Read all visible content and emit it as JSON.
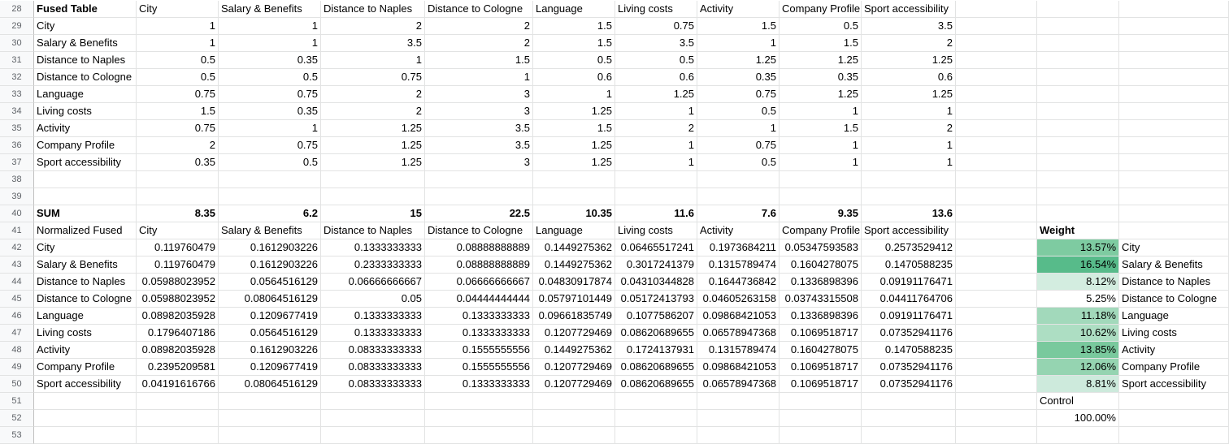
{
  "rows": [
    {
      "n": "28",
      "c": [
        "Fused Table",
        "City",
        "Salary & Benefits",
        "Distance to Naples",
        "Distance to Cologne",
        "Language",
        "Living costs",
        "Activity",
        "Company Profile",
        "Sport accessibility",
        "",
        "",
        ""
      ],
      "bold": [
        0
      ]
    },
    {
      "n": "29",
      "c": [
        "City",
        "1",
        "1",
        "2",
        "2",
        "1.5",
        "0.75",
        "1.5",
        "0.5",
        "3.5",
        "",
        "",
        ""
      ]
    },
    {
      "n": "30",
      "c": [
        "Salary & Benefits",
        "1",
        "1",
        "3.5",
        "2",
        "1.5",
        "3.5",
        "1",
        "1.5",
        "2",
        "",
        "",
        ""
      ]
    },
    {
      "n": "31",
      "c": [
        "Distance to Naples",
        "0.5",
        "0.35",
        "1",
        "1.5",
        "0.5",
        "0.5",
        "1.25",
        "1.25",
        "1.25",
        "",
        "",
        ""
      ]
    },
    {
      "n": "32",
      "c": [
        "Distance to Cologne",
        "0.5",
        "0.5",
        "0.75",
        "1",
        "0.6",
        "0.6",
        "0.35",
        "0.35",
        "0.6",
        "",
        "",
        ""
      ]
    },
    {
      "n": "33",
      "c": [
        "Language",
        "0.75",
        "0.75",
        "2",
        "3",
        "1",
        "1.25",
        "0.75",
        "1.25",
        "1.25",
        "",
        "",
        ""
      ]
    },
    {
      "n": "34",
      "c": [
        "Living costs",
        "1.5",
        "0.35",
        "2",
        "3",
        "1.25",
        "1",
        "0.5",
        "1",
        "1",
        "",
        "",
        ""
      ]
    },
    {
      "n": "35",
      "c": [
        "Activity",
        "0.75",
        "1",
        "1.25",
        "3.5",
        "1.5",
        "2",
        "1",
        "1.5",
        "2",
        "",
        "",
        ""
      ]
    },
    {
      "n": "36",
      "c": [
        "Company Profile",
        "2",
        "0.75",
        "1.25",
        "3.5",
        "1.25",
        "1",
        "0.75",
        "1",
        "1",
        "",
        "",
        ""
      ]
    },
    {
      "n": "37",
      "c": [
        "Sport accessibility",
        "0.35",
        "0.5",
        "1.25",
        "3",
        "1.25",
        "1",
        "0.5",
        "1",
        "1",
        "",
        "",
        ""
      ]
    },
    {
      "n": "38",
      "c": [
        "",
        "",
        "",
        "",
        "",
        "",
        "",
        "",
        "",
        "",
        "",
        "",
        ""
      ]
    },
    {
      "n": "39",
      "c": [
        "",
        "",
        "",
        "",
        "",
        "",
        "",
        "",
        "",
        "",
        "",
        "",
        ""
      ]
    },
    {
      "n": "40",
      "c": [
        "SUM",
        "8.35",
        "6.2",
        "15",
        "22.5",
        "10.35",
        "11.6",
        "7.6",
        "9.35",
        "13.6",
        "",
        "",
        ""
      ],
      "bold": [
        0,
        1,
        2,
        3,
        4,
        5,
        6,
        7,
        8,
        9
      ]
    },
    {
      "n": "41",
      "c": [
        "Normalized Fused",
        "City",
        "Salary & Benefits",
        "Distance to Naples",
        "Distance to Cologne",
        "Language",
        "Living costs",
        "Activity",
        "Company Profile",
        "Sport accessibility",
        "",
        "Weight",
        ""
      ],
      "bold": [
        11
      ]
    },
    {
      "n": "42",
      "c": [
        "City",
        "0.119760479",
        "0.1612903226",
        "0.1333333333",
        "0.08888888889",
        "0.1449275362",
        "0.06465517241",
        "0.1973684211",
        "0.05347593583",
        "0.2573529412",
        "",
        "13.57%",
        "City"
      ]
    },
    {
      "n": "43",
      "c": [
        "Salary & Benefits",
        "0.119760479",
        "0.1612903226",
        "0.2333333333",
        "0.08888888889",
        "0.1449275362",
        "0.3017241379",
        "0.1315789474",
        "0.1604278075",
        "0.1470588235",
        "",
        "16.54%",
        "Salary & Benefits"
      ]
    },
    {
      "n": "44",
      "c": [
        "Distance to Naples",
        "0.05988023952",
        "0.0564516129",
        "0.06666666667",
        "0.06666666667",
        "0.04830917874",
        "0.04310344828",
        "0.1644736842",
        "0.1336898396",
        "0.09191176471",
        "",
        "8.12%",
        "Distance to Naples"
      ]
    },
    {
      "n": "45",
      "c": [
        "Distance to Cologne",
        "0.05988023952",
        "0.08064516129",
        "0.05",
        "0.04444444444",
        "0.05797101449",
        "0.05172413793",
        "0.04605263158",
        "0.03743315508",
        "0.04411764706",
        "",
        "5.25%",
        "Distance to Cologne"
      ]
    },
    {
      "n": "46",
      "c": [
        "Language",
        "0.08982035928",
        "0.1209677419",
        "0.1333333333",
        "0.1333333333",
        "0.09661835749",
        "0.1077586207",
        "0.09868421053",
        "0.1336898396",
        "0.09191176471",
        "",
        "11.18%",
        "Language"
      ]
    },
    {
      "n": "47",
      "c": [
        "Living costs",
        "0.1796407186",
        "0.0564516129",
        "0.1333333333",
        "0.1333333333",
        "0.1207729469",
        "0.08620689655",
        "0.06578947368",
        "0.1069518717",
        "0.07352941176",
        "",
        "10.62%",
        "Living costs"
      ]
    },
    {
      "n": "48",
      "c": [
        "Activity",
        "0.08982035928",
        "0.1612903226",
        "0.08333333333",
        "0.1555555556",
        "0.1449275362",
        "0.1724137931",
        "0.1315789474",
        "0.1604278075",
        "0.1470588235",
        "",
        "13.85%",
        "Activity"
      ]
    },
    {
      "n": "49",
      "c": [
        "Company Profile",
        "0.2395209581",
        "0.1209677419",
        "0.08333333333",
        "0.1555555556",
        "0.1207729469",
        "0.08620689655",
        "0.09868421053",
        "0.1069518717",
        "0.07352941176",
        "",
        "12.06%",
        "Company Profile"
      ]
    },
    {
      "n": "50",
      "c": [
        "Sport accessibility",
        "0.04191616766",
        "0.08064516129",
        "0.08333333333",
        "0.1333333333",
        "0.1207729469",
        "0.08620689655",
        "0.06578947368",
        "0.1069518717",
        "0.07352941176",
        "",
        "8.81%",
        "Sport accessibility"
      ]
    },
    {
      "n": "51",
      "c": [
        "",
        "",
        "",
        "",
        "",
        "",
        "",
        "",
        "",
        "",
        "",
        "Control",
        ""
      ]
    },
    {
      "n": "52",
      "c": [
        "",
        "",
        "",
        "",
        "",
        "",
        "",
        "",
        "",
        "",
        "",
        "100.00%",
        ""
      ]
    },
    {
      "n": "53",
      "c": [
        "",
        "",
        "",
        "",
        "",
        "",
        "",
        "",
        "",
        "",
        "",
        "",
        ""
      ]
    }
  ],
  "weight_fill": {
    "42": "#7ecba1",
    "43": "#57bb8a",
    "44": "#d3ede0",
    "45": "",
    "46": "#a2d9bb",
    "47": "#addec3",
    "48": "#79c99d",
    "49": "#95d4b1",
    "50": "#cdeadc"
  }
}
